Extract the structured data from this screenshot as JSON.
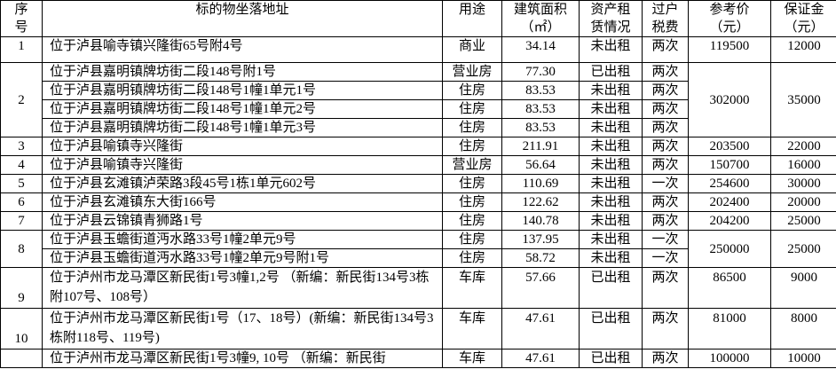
{
  "headers": {
    "no": [
      "序",
      "号"
    ],
    "address": "标的物坐落地址",
    "usage": "用途",
    "area": [
      "建筑面积",
      "（㎡）"
    ],
    "lease": [
      "资产租",
      "赁情况"
    ],
    "tax": [
      "过户",
      "税费"
    ],
    "price": [
      "参考价",
      "（元）"
    ],
    "deposit": [
      "保证金",
      "（元）"
    ]
  },
  "rows": [
    {
      "no": "1",
      "price": "119500",
      "deposit": "12000",
      "type": "tall",
      "items": [
        {
          "address": "位于泸县喻寺镇兴隆街65号附4号",
          "usage": "商业",
          "area": "34.14",
          "lease": "未出租",
          "tax": "两次"
        }
      ]
    },
    {
      "no": "2",
      "price": "302000",
      "deposit": "35000",
      "items": [
        {
          "address": "位于泸县嘉明镇牌坊街二段148号附1号",
          "usage": "营业房",
          "area": "77.30",
          "lease": "已出租",
          "tax": "两次"
        },
        {
          "address": "位于泸县嘉明镇牌坊街二段148号1幢1单元1号",
          "usage": "住房",
          "area": "83.53",
          "lease": "未出租",
          "tax": "两次"
        },
        {
          "address": "位于泸县嘉明镇牌坊街二段148号1幢1单元2号",
          "usage": "住房",
          "area": "83.53",
          "lease": "未出租",
          "tax": "两次"
        },
        {
          "address": "位于泸县嘉明镇牌坊街二段148号1幢1单元3号",
          "usage": "住房",
          "area": "83.53",
          "lease": "未出租",
          "tax": "两次"
        }
      ]
    },
    {
      "no": "3",
      "price": "203500",
      "deposit": "22000",
      "items": [
        {
          "address": "位于泸县喻镇寺兴隆街",
          "usage": "住房",
          "area": "211.91",
          "lease": "未出租",
          "tax": "两次"
        }
      ]
    },
    {
      "no": "4",
      "price": "150700",
      "deposit": "16000",
      "items": [
        {
          "address": "位于泸县喻镇寺兴隆街",
          "usage": "营业房",
          "area": "56.64",
          "lease": "未出租",
          "tax": "两次"
        }
      ]
    },
    {
      "no": "5",
      "price": "254600",
      "deposit": "30000",
      "items": [
        {
          "address": "位于泸县玄滩镇泸荣路3段45号1栋1单元602号",
          "usage": "住房",
          "area": "110.69",
          "lease": "未出租",
          "tax": "一次"
        }
      ]
    },
    {
      "no": "6",
      "price": "202400",
      "deposit": "20000",
      "items": [
        {
          "address": "位于泸县玄滩镇东大街166号",
          "usage": "住房",
          "area": "122.62",
          "lease": "未出租",
          "tax": "两次"
        }
      ]
    },
    {
      "no": "7",
      "price": "204200",
      "deposit": "25000",
      "items": [
        {
          "address": "位于泸县云锦镇青狮路1号",
          "usage": "住房",
          "area": "140.78",
          "lease": "未出租",
          "tax": "两次"
        }
      ]
    },
    {
      "no": "8",
      "price": "250000",
      "deposit": "25000",
      "items": [
        {
          "address": "位于泸县玉蟾街道沔水路33号1幢2单元9号",
          "usage": "住房",
          "area": "137.95",
          "lease": "未出租",
          "tax": "一次"
        },
        {
          "address": "位于泸县玉蟾街道沔水路33号1幢2单元9号附1号",
          "usage": "住房",
          "area": "58.72",
          "lease": "未出租",
          "tax": "一次"
        }
      ]
    },
    {
      "no": "9",
      "price": "86500",
      "deposit": "9000",
      "type": "dbl",
      "items": [
        {
          "address": "位于泸州市龙马潭区新民街1号3幢1,2号 （新编：新民街134号3栋附107号、108号）",
          "usage": "车库",
          "area": "57.66",
          "lease": "已出租",
          "tax": "两次"
        }
      ]
    },
    {
      "no": "10",
      "price": "81000",
      "deposit": "8000",
      "type": "dbl",
      "items": [
        {
          "address": "位于泸州市龙马潭区新民街1号（17、18号）(新编：新民街134号3栋附118号、119号)",
          "usage": "车库",
          "area": "47.61",
          "lease": "已出租",
          "tax": "两次"
        }
      ]
    },
    {
      "no": "",
      "price": "100000",
      "deposit": "10000",
      "items": [
        {
          "address": "位于泸州市龙马潭区新民街1号3幢9, 10号 （新编：新民街",
          "usage": "车库",
          "area": "47.61",
          "lease": "已出租",
          "tax": "两次"
        }
      ]
    }
  ]
}
